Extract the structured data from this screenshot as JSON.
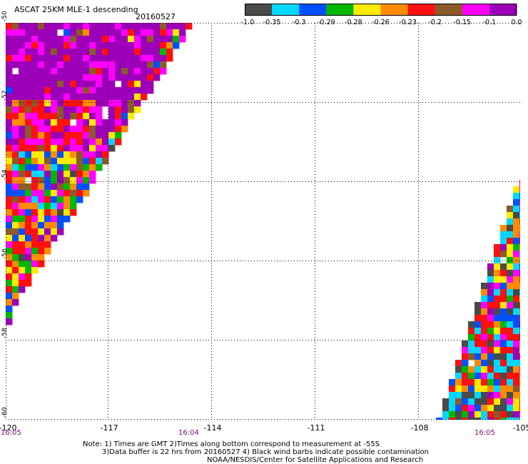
{
  "title": "ASCAT 25KM MLE-1 descending",
  "date": "20160527",
  "colorbar": {
    "colors": [
      "#4a4a4a",
      "#00d8ff",
      "#0050ff",
      "#00b800",
      "#ffea00",
      "#ff8c00",
      "#ff1010",
      "#8c5a28",
      "#ff00ff",
      "#9c00b8"
    ],
    "labels": [
      "-1.0",
      "-0.35",
      "-0.3",
      "-0.29",
      "-0.28",
      "-0.26",
      "-0.23",
      "-0.2",
      "-0.15",
      "-0.1",
      "0.0"
    ]
  },
  "y_axis": [
    "-50",
    "-52",
    "-54",
    "-56",
    "-58",
    "-60"
  ],
  "x_axis": [
    "-120",
    "-117",
    "-114",
    "-111",
    "-108",
    "-105"
  ],
  "times": [
    "16:05",
    "16:04",
    "16:05"
  ],
  "notes": {
    "line1": "Note: 1) Times are GMT 2)Times along bottom correspond to measurement at -55S",
    "line2": "3)Data buffer is 22 hrs from 20160527 4) Black wind barbs indicate possible contamination",
    "line3": "NOAA/NESDIS/Center for Satellite Applications and Research"
  }
}
